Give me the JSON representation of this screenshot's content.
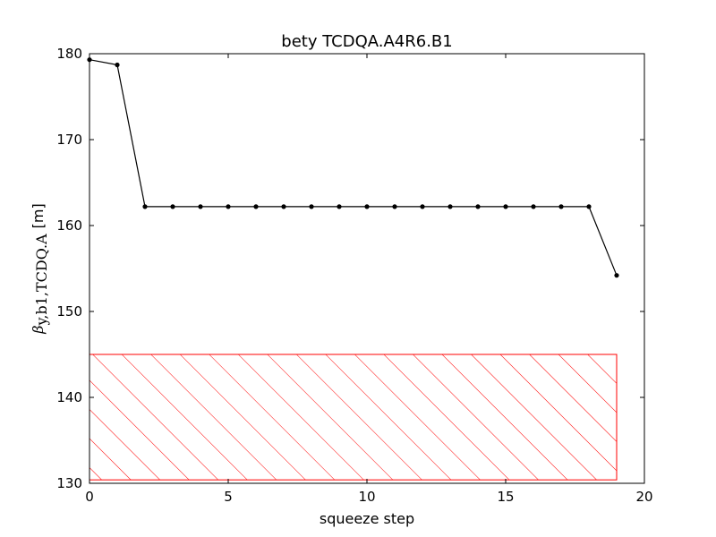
{
  "chart_data": {
    "type": "line",
    "title": "bety TCDQA.A4R6.B1",
    "xlabel": "squeeze step",
    "ylabel": {
      "symbol": "β",
      "subscript": "y,b1,TCDQ.A",
      "unit": "[m]"
    },
    "xlim": [
      0,
      20
    ],
    "ylim": [
      130,
      180
    ],
    "x_ticks": [
      0,
      5,
      10,
      15,
      20
    ],
    "y_ticks": [
      130,
      140,
      150,
      160,
      170,
      180
    ],
    "grid": false,
    "series": [
      {
        "color": "#000000",
        "x": [
          0,
          1,
          2,
          3,
          4,
          5,
          6,
          7,
          8,
          9,
          10,
          11,
          12,
          13,
          14,
          15,
          16,
          17,
          18,
          19
        ],
        "y": [
          179.3,
          178.7,
          162.2,
          162.2,
          162.2,
          162.2,
          162.2,
          162.2,
          162.2,
          162.2,
          162.2,
          162.2,
          162.2,
          162.2,
          162.2,
          162.2,
          162.2,
          162.2,
          162.2,
          154.2
        ]
      }
    ],
    "shaded_region": {
      "x": [
        0,
        19
      ],
      "y": [
        130.4,
        145.0
      ],
      "color": "#ff0000",
      "pattern": "hatch"
    }
  }
}
